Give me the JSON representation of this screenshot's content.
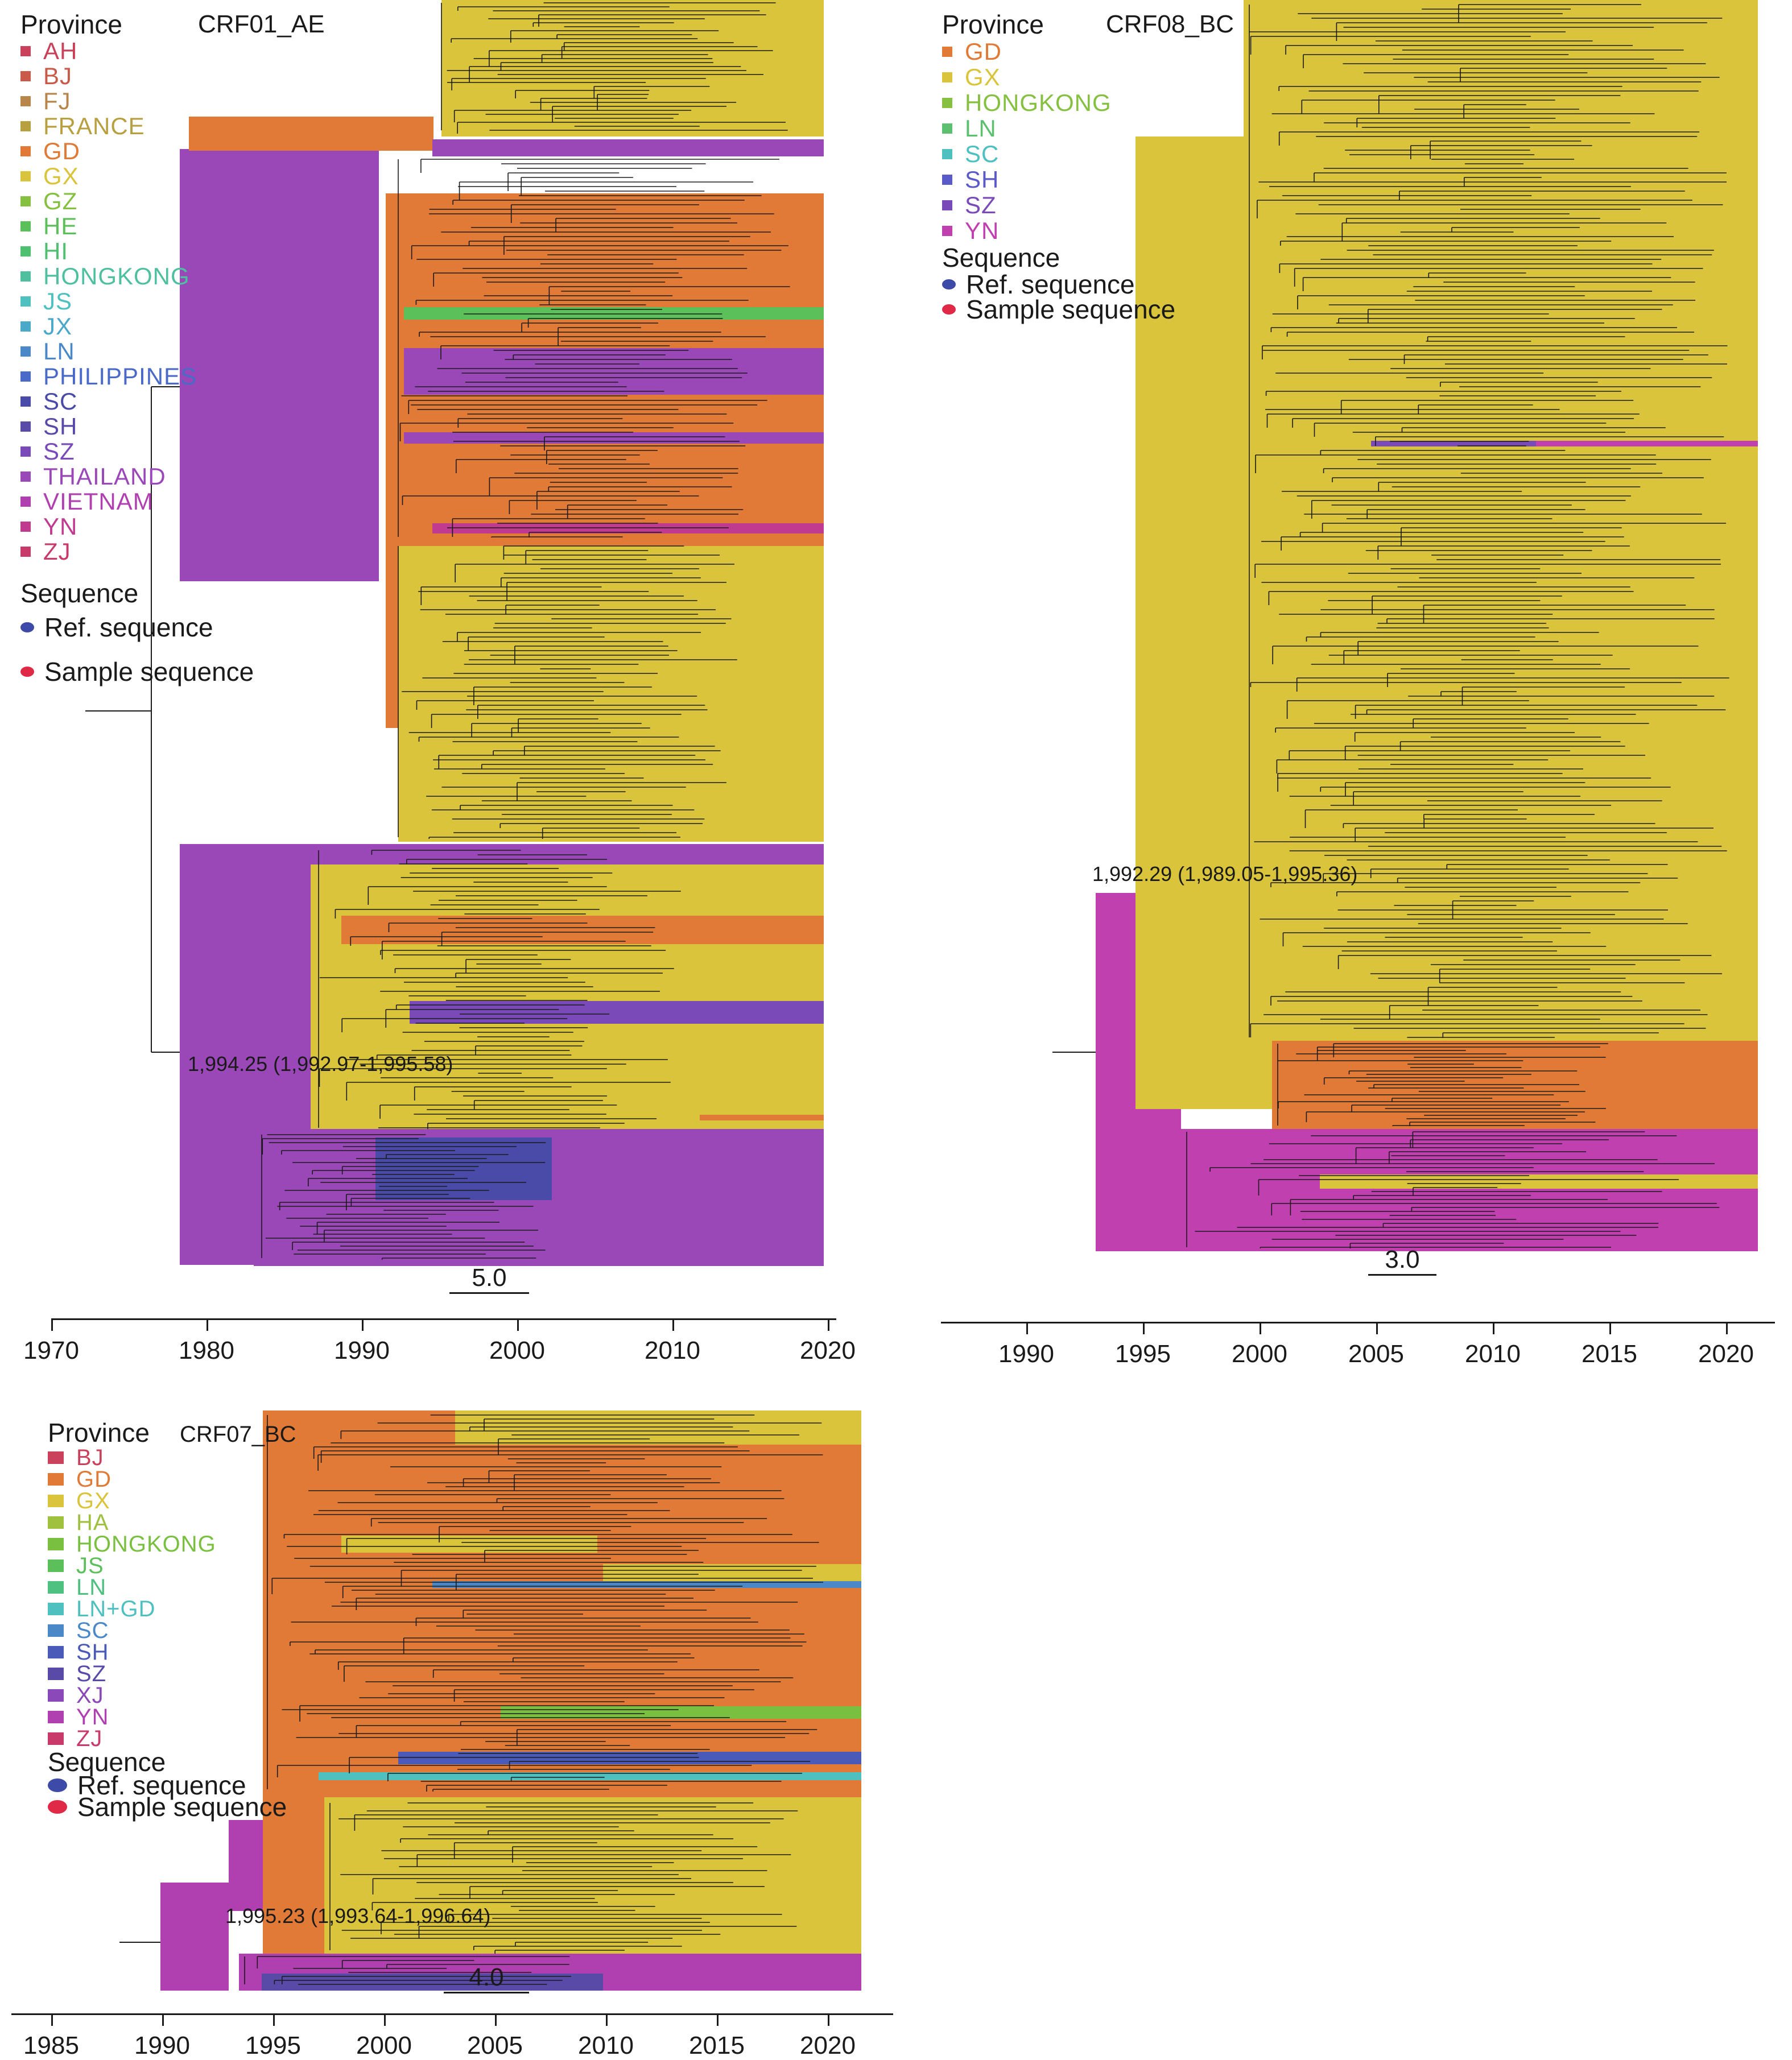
{
  "legend_common": {
    "province_title": "Province",
    "sequence_title": "Sequence",
    "ref_label": "Ref. sequence",
    "sample_label": "Sample sequence",
    "ref_color": "#3d4aa8",
    "sample_color": "#e02847"
  },
  "panels": [
    {
      "id": "crf01",
      "name": "CRF01_AE",
      "provinces": [
        {
          "label": "AH",
          "color": "#c9415a"
        },
        {
          "label": "BJ",
          "color": "#c95a4a"
        },
        {
          "label": "FJ",
          "color": "#b8864a"
        },
        {
          "label": "FRANCE",
          "color": "#b8a040"
        },
        {
          "label": "GD",
          "color": "#e07a36"
        },
        {
          "label": "GX",
          "color": "#d9c43c"
        },
        {
          "label": "GZ",
          "color": "#86c040"
        },
        {
          "label": "HE",
          "color": "#5cc05a"
        },
        {
          "label": "HI",
          "color": "#4ec070"
        },
        {
          "label": "HONGKONG",
          "color": "#4ec0a0"
        },
        {
          "label": "JS",
          "color": "#4ec0c0"
        },
        {
          "label": "JX",
          "color": "#4aa8c8"
        },
        {
          "label": "LN",
          "color": "#4a88c8"
        },
        {
          "label": "PHILIPPINES",
          "color": "#4a6ac8"
        },
        {
          "label": "SC",
          "color": "#4a4aa8"
        },
        {
          "label": "SH",
          "color": "#5a4aa8"
        },
        {
          "label": "SZ",
          "color": "#7a4ab8"
        },
        {
          "label": "THAILAND",
          "color": "#9a48b8"
        },
        {
          "label": "VIETNAM",
          "color": "#b040b0"
        },
        {
          "label": "YN",
          "color": "#c03a90"
        },
        {
          "label": "ZJ",
          "color": "#c83a6a"
        }
      ],
      "tmrca": "1,994.25 (1,992.97-1,995.58)",
      "scale": "5.0",
      "axis_ticks": [
        "1970",
        "1980",
        "1990",
        "2000",
        "2010",
        "2020"
      ]
    },
    {
      "id": "crf08",
      "name": "CRF08_BC",
      "provinces": [
        {
          "label": "GD",
          "color": "#e07a36"
        },
        {
          "label": "GX",
          "color": "#d9c43c"
        },
        {
          "label": "HONGKONG",
          "color": "#86c040"
        },
        {
          "label": "LN",
          "color": "#5cc070"
        },
        {
          "label": "SC",
          "color": "#4ec0c0"
        },
        {
          "label": "SH",
          "color": "#5a5ac8"
        },
        {
          "label": "SZ",
          "color": "#7a4ab8"
        },
        {
          "label": "YN",
          "color": "#c040b0"
        }
      ],
      "tmrca": "1,992.29 (1,989.05-1,995.36)",
      "scale": "3.0",
      "axis_ticks": [
        "1990",
        "1995",
        "2000",
        "2005",
        "2010",
        "2015",
        "2020"
      ]
    },
    {
      "id": "crf07",
      "name": "CRF07_BC",
      "provinces": [
        {
          "label": "BJ",
          "color": "#c9415a"
        },
        {
          "label": "GD",
          "color": "#e07a36"
        },
        {
          "label": "GX",
          "color": "#d9c43c"
        },
        {
          "label": "HA",
          "color": "#a0c040"
        },
        {
          "label": "HONGKONG",
          "color": "#7ac040"
        },
        {
          "label": "JS",
          "color": "#5cc05a"
        },
        {
          "label": "LN",
          "color": "#4ec080"
        },
        {
          "label": "LN+GD",
          "color": "#4ec0c0"
        },
        {
          "label": "SC",
          "color": "#4a88c8"
        },
        {
          "label": "SH",
          "color": "#4a5ab8"
        },
        {
          "label": "SZ",
          "color": "#5a4aa8"
        },
        {
          "label": "XJ",
          "color": "#8a48b8"
        },
        {
          "label": "YN",
          "color": "#b040b0"
        },
        {
          "label": "ZJ",
          "color": "#c83a6a"
        }
      ],
      "tmrca": "1,995.23 (1,993.64-1,996.64)",
      "scale": "4.0",
      "axis_ticks": [
        "1985",
        "1990",
        "1995",
        "2000",
        "2005",
        "2010",
        "2015",
        "2020"
      ]
    }
  ]
}
